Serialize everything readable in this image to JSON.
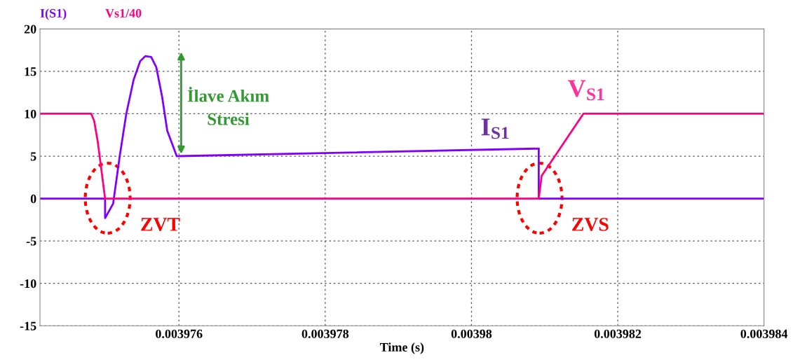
{
  "chart_data": {
    "type": "line",
    "xlabel": "Time (s)",
    "xlim": [
      0.0039741,
      0.003984
    ],
    "xticks": [
      0.003976,
      0.003978,
      0.00398,
      0.003982,
      0.003984
    ],
    "ylim": [
      -15,
      20
    ],
    "yticks": [
      -15,
      -10,
      -5,
      0,
      5,
      10,
      15,
      20
    ],
    "grid": true,
    "legend": "top left",
    "series": [
      {
        "name": "I(S1)",
        "color": "#8000ff",
        "x": [
          0.0039741,
          0.00397499,
          0.00397499,
          0.0039751,
          0.00397519,
          0.00397528,
          0.00397538,
          0.00397547,
          0.00397554,
          0.00397562,
          0.00397569,
          0.00397577,
          0.00397584,
          0.00397597,
          0.00397821,
          0.00398092,
          0.00398092,
          0.003984
        ],
        "values": [
          0,
          0,
          -2.3,
          -0.6,
          5,
          10,
          14,
          16.2,
          16.8,
          16.7,
          15.5,
          12,
          8,
          5,
          5.4,
          5.9,
          0,
          0
        ]
      },
      {
        "name": "Vs1/40",
        "color": "#ff0080",
        "x": [
          0.0039741,
          0.0039748,
          0.00397484,
          0.00397489,
          0.00397499,
          0.00398092,
          0.00398096,
          0.00398153,
          0.003984
        ],
        "values": [
          10,
          10,
          9.2,
          6.7,
          0,
          0,
          2.7,
          10,
          10
        ]
      }
    ],
    "annotations": [
      "ZVT",
      "ZVS",
      "I$_{S1}$",
      "V$_{S1}$",
      "İlave Akım\nStresi"
    ]
  }
}
